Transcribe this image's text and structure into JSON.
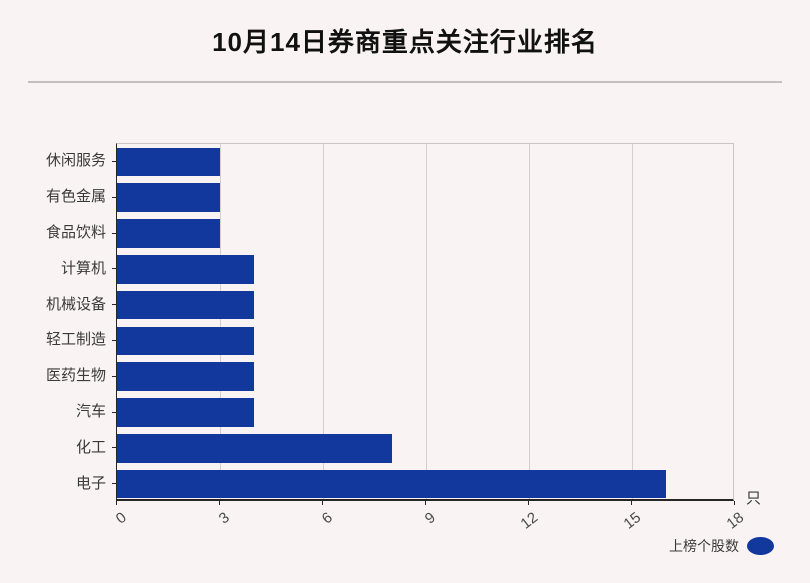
{
  "title": "10月14日券商重点关注行业排名",
  "unit_label": "只",
  "legend": {
    "label": "上榜个股数"
  },
  "colors": {
    "bar": "#12389E",
    "background": "#f9f4f3",
    "grid": "#d4d0cf",
    "axis": "#262626",
    "text": "#3a3a3a",
    "divider": "#c4c0bf"
  },
  "chart_data": {
    "type": "bar",
    "orientation": "horizontal",
    "title": "10月14日券商重点关注行业排名",
    "categories": [
      "休闲服务",
      "有色金属",
      "食品饮料",
      "计算机",
      "机械设备",
      "轻工制造",
      "医药生物",
      "汽车",
      "化工",
      "电子"
    ],
    "values": [
      3,
      3,
      3,
      4,
      4,
      4,
      4,
      4,
      8,
      16
    ],
    "series_name": "上榜个股数",
    "xlabel": "只",
    "ylabel": "",
    "xlim": [
      0,
      18
    ],
    "xticks": [
      0,
      3,
      6,
      9,
      12,
      15,
      18
    ],
    "grid": true,
    "legend_position": "lower right"
  }
}
